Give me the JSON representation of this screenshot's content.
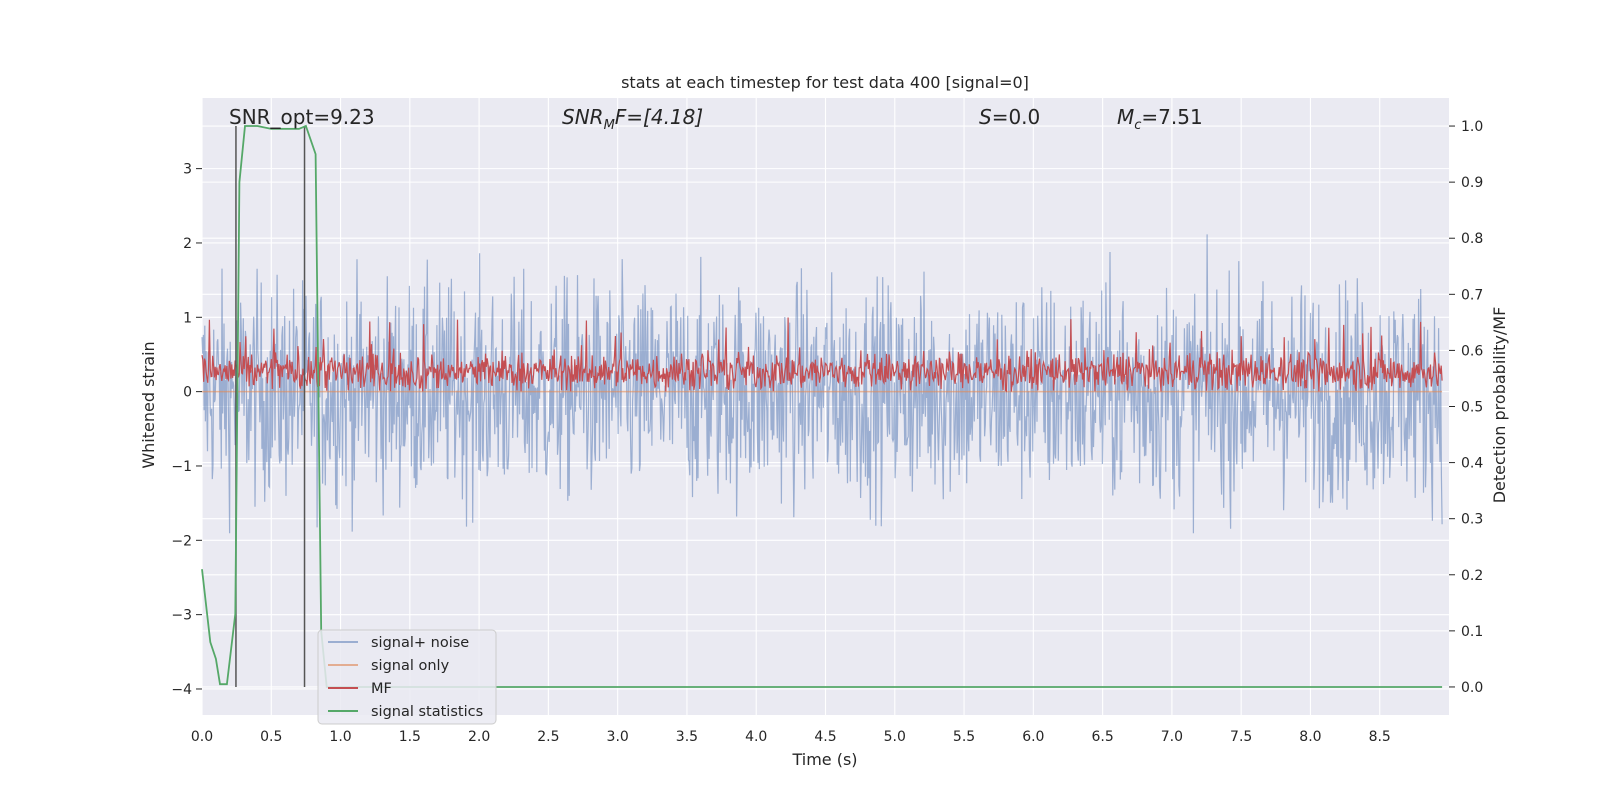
{
  "chart_data": {
    "type": "line",
    "title": "stats at each timestep for test data 400 [signal=0]",
    "xlabel": "Time (s)",
    "ylabel": "Whitened strain",
    "y2label": "Detection probability/MF",
    "xlim": [
      0.0,
      9.0
    ],
    "ylim": [
      -4.35,
      3.95
    ],
    "y2lim": [
      -0.05,
      1.05
    ],
    "x_ticks": [
      "0.0",
      "0.5",
      "1.0",
      "1.5",
      "2.0",
      "2.5",
      "3.0",
      "3.5",
      "4.0",
      "4.5",
      "5.0",
      "5.5",
      "6.0",
      "6.5",
      "7.0",
      "7.5",
      "8.0",
      "8.5"
    ],
    "y_ticks": [
      "3",
      "2",
      "1",
      "0",
      "−1",
      "−2",
      "−3",
      "−4"
    ],
    "y_tick_values": [
      3,
      2,
      1,
      0,
      -1,
      -2,
      -3,
      -4
    ],
    "y2_ticks": [
      "1.0",
      "0.9",
      "0.8",
      "0.7",
      "0.6",
      "0.5",
      "0.4",
      "0.3",
      "0.2",
      "0.1",
      "0.0"
    ],
    "y2_tick_values": [
      1.0,
      0.9,
      0.8,
      0.7,
      0.6,
      0.5,
      0.4,
      0.3,
      0.2,
      0.1,
      0.0
    ],
    "grid": true,
    "legend_position": "lower-left",
    "annotations": {
      "snr_opt": "SNR_opt=9.23",
      "snr_mf_main": "SNR",
      "snr_mf_sub": "M",
      "snr_mf_rest": "F=[4.18]",
      "s_italic": "S",
      "s_rest": "=0.0",
      "mc_main": "M",
      "mc_sub": "c",
      "mc_rest": "=7.51"
    },
    "series": [
      {
        "name": "signal+ noise",
        "color": "#4c72b0",
        "envelope_upper": 1.3,
        "envelope_lower": -1.3,
        "peak_max": 3.55,
        "peak_min": -3.6,
        "note_values": "dense noise trace"
      },
      {
        "name": "signal only",
        "color": "#dd8452",
        "values_constant": 0.0
      },
      {
        "name": "MF",
        "color": "#c44e52",
        "band": [
          0.0,
          0.55
        ],
        "peak_max": 1.0
      },
      {
        "name": "signal statistics",
        "color": "#55a868",
        "x": [
          0.0,
          0.06,
          0.1,
          0.13,
          0.18,
          0.24,
          0.27,
          0.31,
          0.4,
          0.5,
          0.6,
          0.7,
          0.75,
          0.82,
          0.86,
          0.9,
          1.0,
          2.0,
          3.0,
          4.0,
          5.0,
          6.0,
          7.0,
          8.0,
          8.95
        ],
        "y": [
          0.21,
          0.08,
          0.05,
          0.005,
          0.005,
          0.13,
          0.9,
          1.0,
          1.0,
          0.995,
          0.995,
          0.995,
          1.0,
          0.95,
          0.1,
          0.0,
          0.0,
          0.0,
          0.0,
          0.0,
          0.0,
          0.0,
          0.0,
          0.0,
          0.0
        ]
      },
      {
        "name": "markers",
        "color": "#555555",
        "vertical_lines_x": [
          0.245,
          0.74
        ]
      }
    ]
  }
}
